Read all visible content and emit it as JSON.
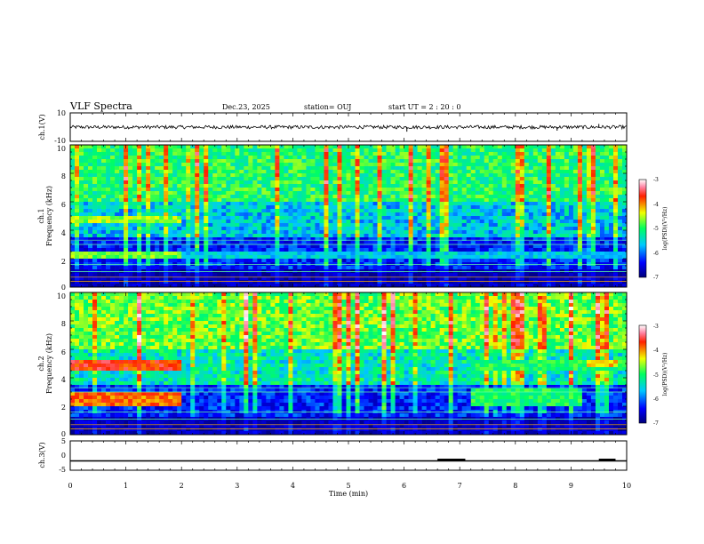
{
  "header": {
    "title": "VLF Spectra",
    "date": "Dec.23, 2025",
    "station": "station= OUJ",
    "start": "start  UT =   2 : 20 : 0"
  },
  "chart_data": [
    {
      "name": "ch1-waveform",
      "type": "line",
      "ylabel": "ch.1(V)",
      "ylim": [
        -10,
        10
      ],
      "yticks": [
        "10",
        "-10"
      ],
      "xlim": [
        0,
        10
      ],
      "baseline": 0,
      "noise_amplitude": 1.2,
      "spikes": [
        {
          "x": 6.05,
          "y": -3.2
        },
        {
          "x": 8.75,
          "y": -2.5
        },
        {
          "x": 9.5,
          "y": 2.2
        }
      ]
    },
    {
      "name": "ch1-spectrogram",
      "type": "heatmap",
      "ylabel": "ch.1",
      "ylabel2": "Frequency (kHz)",
      "ylim": [
        0,
        10
      ],
      "yticks": [
        "10",
        "8",
        "6",
        "4",
        "2",
        "0"
      ],
      "xlim": [
        0,
        10
      ],
      "colorbar": {
        "label": "log(PSD)(V²/Hz)",
        "range": [
          -7,
          -3
        ],
        "ticks": [
          "-3",
          "-4",
          "-5",
          "-6",
          "-7"
        ]
      },
      "bands": [
        {
          "fmin": 4.6,
          "fmax": 5.0,
          "tmin": 0,
          "tmax": 2.0,
          "level": -4.6
        },
        {
          "fmin": 2.0,
          "fmax": 2.6,
          "tmin": 0,
          "tmax": 2.0,
          "level": -4.7
        },
        {
          "fmin": 2.0,
          "fmax": 2.6,
          "tmin": 2.0,
          "tmax": 10,
          "level": -5.6
        }
      ]
    },
    {
      "name": "ch2-spectrogram",
      "type": "heatmap",
      "ylabel": "ch.2",
      "ylabel2": "Frequency (kHz)",
      "ylim": [
        0,
        10
      ],
      "yticks": [
        "10",
        "8",
        "6",
        "4",
        "2",
        "0"
      ],
      "xlim": [
        0,
        10
      ],
      "colorbar": {
        "label": "log(PSD)(V²/Hz)",
        "range": [
          -7,
          -3
        ],
        "ticks": [
          "-3",
          "-4",
          "-5",
          "-6",
          "-7"
        ]
      },
      "bands": [
        {
          "fmin": 4.6,
          "fmax": 5.3,
          "tmin": 0,
          "tmax": 2.0,
          "level": -3.7
        },
        {
          "fmin": 2.0,
          "fmax": 3.0,
          "tmin": 0,
          "tmax": 2.0,
          "level": -3.9
        },
        {
          "fmin": 2.0,
          "fmax": 3.2,
          "tmin": 7.2,
          "tmax": 9.2,
          "level": -5.0
        },
        {
          "fmin": 4.6,
          "fmax": 5.2,
          "tmin": 7.2,
          "tmax": 10,
          "level": -5.0
        },
        {
          "fmin": 4.8,
          "fmax": 5.3,
          "tmin": 9.3,
          "tmax": 9.8,
          "level": -4.2
        }
      ]
    },
    {
      "name": "ch3-waveform",
      "type": "line",
      "ylabel": "ch.3(V)",
      "ylim": [
        -5,
        5
      ],
      "yticks": [
        "5",
        "0",
        "-5"
      ],
      "xlim": [
        0,
        10
      ],
      "level": -1.8,
      "thick_segments": [
        [
          6.6,
          7.1
        ],
        [
          9.5,
          9.8
        ]
      ],
      "xlabel": "Time  (min)",
      "xticks": [
        "0",
        "1",
        "2",
        "3",
        "4",
        "5",
        "6",
        "7",
        "8",
        "9",
        "10"
      ]
    }
  ]
}
